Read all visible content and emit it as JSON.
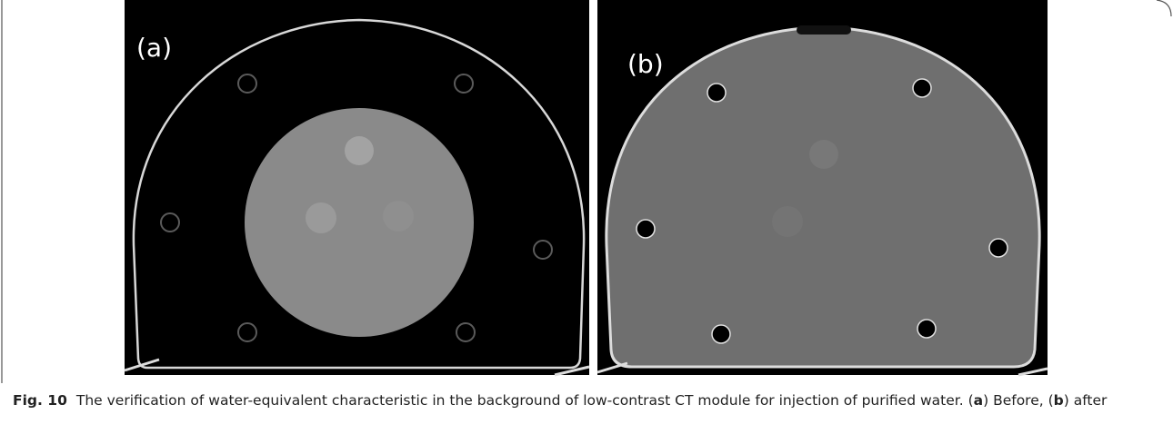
{
  "figure": {
    "panels": [
      {
        "label": "(a)"
      },
      {
        "label": "(b)"
      }
    ]
  },
  "caption": {
    "label": "Fig. 10",
    "segments": [
      {
        "text": "The verification of water-equivalent characteristic in the background of low-contrast CT module for injection of purified water. (",
        "bold": false
      },
      {
        "text": "a",
        "bold": true
      },
      {
        "text": ") Before, (",
        "bold": false
      },
      {
        "text": "b",
        "bold": true
      },
      {
        "text": ") after",
        "bold": false
      }
    ]
  }
}
